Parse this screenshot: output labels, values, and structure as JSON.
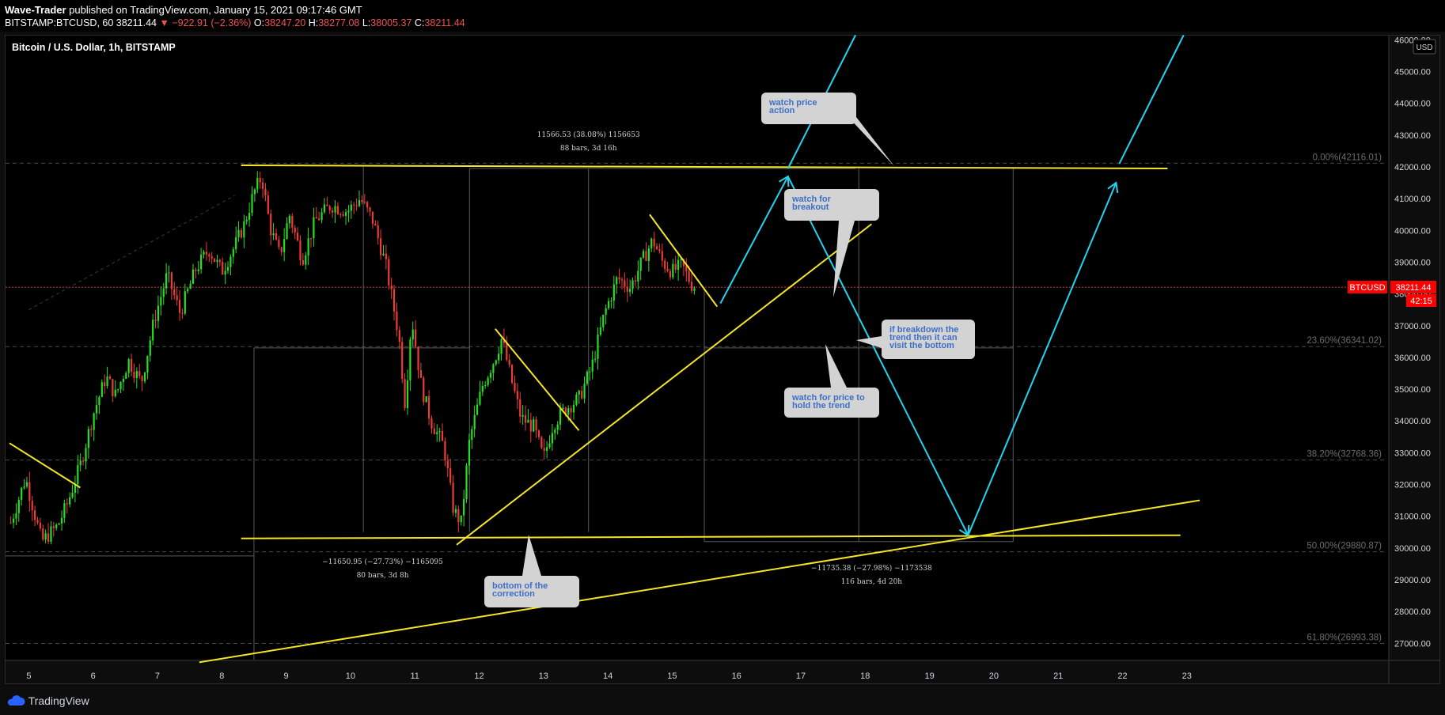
{
  "header": {
    "author": "Wave-Trader",
    "published_text": " published on TradingView.com, January 15, 2021 09:17:46 GMT",
    "symbol_line": "BITSTAMP:BTCUSD, 60",
    "last": "38211.44",
    "change": "−922.91 (−2.36%)",
    "o_label": "O:",
    "o": "38247.20",
    "h_label": "H:",
    "h": "38277.08",
    "l_label": "L:",
    "l": "38005.37",
    "c_label": "C:",
    "c": "38211.44"
  },
  "chart_title": "Bitcoin / U.S. Dollar, 1h, BITSTAMP",
  "currency_badge": "USD",
  "price_tag": {
    "symbol": "BTCUSD",
    "price": "38211.44",
    "countdown": "42:15"
  },
  "footer": {
    "brand": "TradingView"
  },
  "chart_data": {
    "type": "candlestick",
    "title": "Bitcoin / U.S. Dollar, 1h, BITSTAMP",
    "x_ticks": [
      "5",
      "6",
      "7",
      "8",
      "9",
      "10",
      "11",
      "12",
      "13",
      "14",
      "15",
      "16",
      "17",
      "18",
      "19",
      "20",
      "21",
      "22",
      "23"
    ],
    "y_ticks": [
      "27000.00",
      "28000.00",
      "29000.00",
      "30000.00",
      "31000.00",
      "32000.00",
      "33000.00",
      "34000.00",
      "35000.00",
      "36000.00",
      "37000.00",
      "38000.00",
      "39000.00",
      "40000.00",
      "41000.00",
      "42000.00",
      "43000.00",
      "44000.00",
      "45000.00",
      "46000.00"
    ],
    "ylim": [
      26400,
      46100
    ],
    "xlim": [
      4.7,
      23.2
    ],
    "last_price": 38211.44,
    "price_path": [
      [
        4.72,
        30800
      ],
      [
        4.95,
        32200
      ],
      [
        5.1,
        31000
      ],
      [
        5.2,
        30200
      ],
      [
        5.45,
        30700
      ],
      [
        5.6,
        31400
      ],
      [
        5.8,
        32600
      ],
      [
        6.0,
        34200
      ],
      [
        6.2,
        35400
      ],
      [
        6.35,
        34800
      ],
      [
        6.55,
        35900
      ],
      [
        6.75,
        35200
      ],
      [
        6.95,
        37200
      ],
      [
        7.15,
        38600
      ],
      [
        7.35,
        37400
      ],
      [
        7.6,
        38800
      ],
      [
        7.8,
        39400
      ],
      [
        8.0,
        38700
      ],
      [
        8.2,
        39500
      ],
      [
        8.35,
        40200
      ],
      [
        8.5,
        41200
      ],
      [
        8.62,
        41700
      ],
      [
        8.75,
        40100
      ],
      [
        8.9,
        39200
      ],
      [
        9.05,
        40500
      ],
      [
        9.25,
        39100
      ],
      [
        9.45,
        40300
      ],
      [
        9.7,
        40800
      ],
      [
        9.95,
        40600
      ],
      [
        10.15,
        41000
      ],
      [
        10.35,
        40300
      ],
      [
        10.55,
        38900
      ],
      [
        10.75,
        36700
      ],
      [
        10.85,
        34500
      ],
      [
        10.95,
        37300
      ],
      [
        11.1,
        35100
      ],
      [
        11.25,
        34000
      ],
      [
        11.45,
        33200
      ],
      [
        11.6,
        31200
      ],
      [
        11.72,
        30800
      ],
      [
        11.85,
        33400
      ],
      [
        12.05,
        35100
      ],
      [
        12.25,
        36000
      ],
      [
        12.35,
        36600
      ],
      [
        12.5,
        35300
      ],
      [
        12.65,
        34100
      ],
      [
        12.85,
        33800
      ],
      [
        13.0,
        32800
      ],
      [
        13.15,
        33900
      ],
      [
        13.35,
        34400
      ],
      [
        13.55,
        34700
      ],
      [
        13.75,
        35700
      ],
      [
        13.95,
        37400
      ],
      [
        14.15,
        38500
      ],
      [
        14.35,
        38200
      ],
      [
        14.55,
        39100
      ],
      [
        14.7,
        39700
      ],
      [
        14.85,
        39000
      ],
      [
        15.0,
        38700
      ],
      [
        15.15,
        38900
      ],
      [
        15.3,
        38300
      ],
      [
        15.38,
        38211
      ]
    ],
    "levels": [
      {
        "label": "0.00%(42116.01)",
        "value": 42116.01
      },
      {
        "label": "23.60%(36341.02)",
        "value": 36341.02
      },
      {
        "label": "38.20%(32768.36)",
        "value": 32768.36
      },
      {
        "label": "50.00%(29880.87)",
        "value": 29880.87
      },
      {
        "label": "61.80%(26993.38)",
        "value": 26993.38
      }
    ],
    "measurements": [
      {
        "line1": "11566.53 (38.08%) 1156653",
        "line2": "88 bars, 3d 16h"
      },
      {
        "line1": "−11650.95 (−27.73%) −1165095",
        "line2": "80 bars, 3d 8h"
      },
      {
        "line1": "−11735.38 (−27.98%) −1173538",
        "line2": "116 bars, 4d 20h"
      }
    ],
    "notes": [
      {
        "lines": [
          "watch price",
          "action"
        ]
      },
      {
        "lines": [
          "watch for",
          "breakout"
        ]
      },
      {
        "lines": [
          "if breakdown the",
          "trend then it can",
          "visit the bottom"
        ]
      },
      {
        "lines": [
          "watch for price to",
          "hold the trend"
        ]
      },
      {
        "lines": [
          "bottom of the",
          "correction"
        ]
      }
    ],
    "colors": {
      "trendline": "#f5e625",
      "projection": "#21d4f0",
      "bull": "#26e01f",
      "bear": "#ef3b36",
      "price_tag": "#ff0000"
    }
  }
}
